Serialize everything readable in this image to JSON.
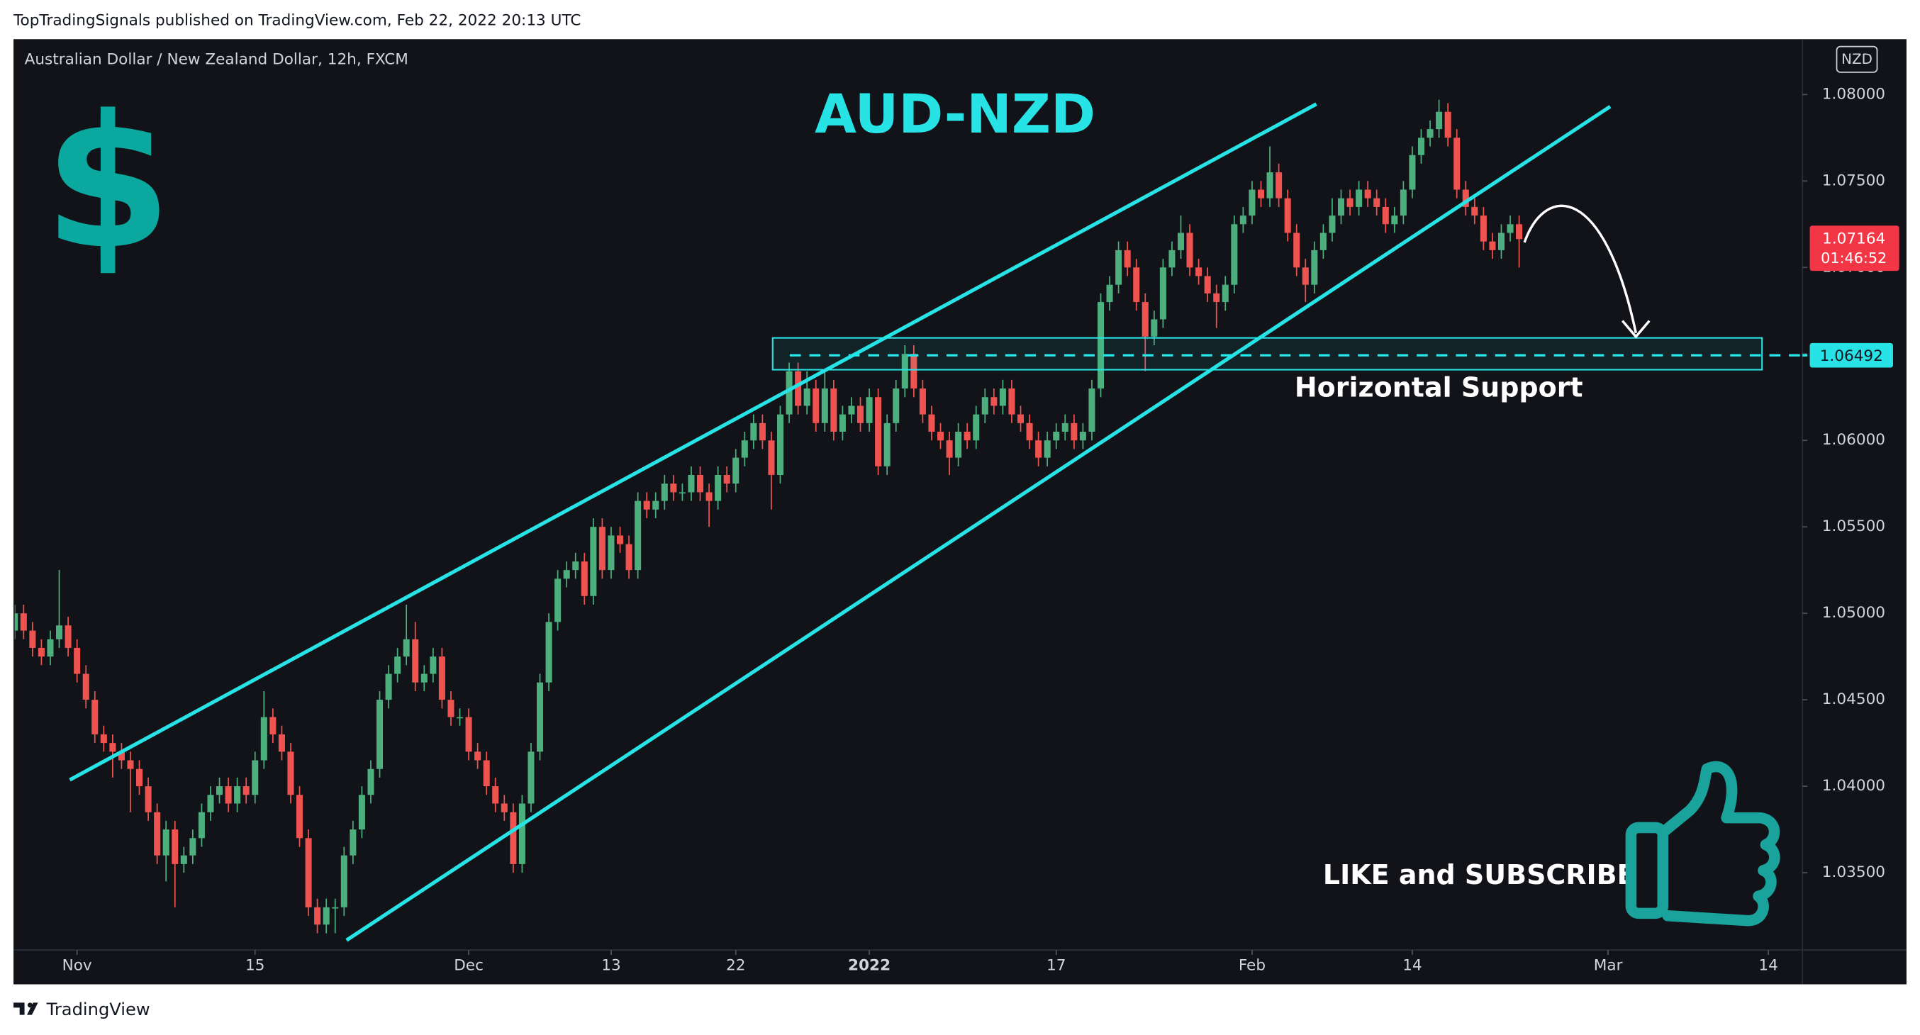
{
  "page": {
    "byline": "TopTradingSignals published on TradingView.com, Feb 22, 2022 20:13 UTC",
    "brand": "TradingView"
  },
  "chart_data": {
    "type": "candlestick",
    "title": "Australian Dollar / New Zealand Dollar, 12h, FXCM",
    "currency": "NZD",
    "annotations": {
      "pair": "AUD-NZD",
      "symbol": "$",
      "support": "Horizontal Support",
      "call_to_action": "LIKE and SUBSCRIBE"
    },
    "up_color": "#4caf7d",
    "down_color": "#ef5350",
    "channel_color": "#27e3e6",
    "current_price": {
      "value": 1.07164,
      "label": "1.07164",
      "countdown": "01:46:52",
      "color": "#f23645"
    },
    "support_level": {
      "value": 1.06492,
      "label": "1.06492",
      "color": "#27e3e6"
    },
    "xlim": [
      0,
      200
    ],
    "xticks": [
      {
        "value": 7,
        "label": "Nov"
      },
      {
        "value": 27,
        "label": "15"
      },
      {
        "value": 51,
        "label": "Dec"
      },
      {
        "value": 67,
        "label": "13"
      },
      {
        "value": 81,
        "label": "22"
      },
      {
        "value": 96,
        "label": "2022"
      },
      {
        "value": 117,
        "label": "17"
      },
      {
        "value": 139,
        "label": "Feb"
      },
      {
        "value": 157,
        "label": "14"
      },
      {
        "value": 179,
        "label": "Mar"
      },
      {
        "value": 197,
        "label": "14"
      }
    ],
    "ylim": [
      1.0306,
      1.0832
    ],
    "yticks": [
      {
        "value": 1.035,
        "label": "1.03500"
      },
      {
        "value": 1.04,
        "label": "1.04000"
      },
      {
        "value": 1.045,
        "label": "1.04500"
      },
      {
        "value": 1.05,
        "label": "1.05000"
      },
      {
        "value": 1.055,
        "label": "1.05500"
      },
      {
        "value": 1.06,
        "label": "1.06000"
      },
      {
        "value": 1.065,
        "label": "1.06500"
      },
      {
        "value": 1.07,
        "label": "1.07000"
      },
      {
        "value": 1.075,
        "label": "1.07500"
      },
      {
        "value": 1.08,
        "label": "1.08000"
      }
    ],
    "open": [
      1.049,
      1.05,
      1.049,
      1.048,
      1.0475,
      1.0485,
      1.0493,
      1.048,
      1.0465,
      1.045,
      1.043,
      1.0425,
      1.042,
      1.0415,
      1.041,
      1.04,
      1.0385,
      1.036,
      1.0375,
      1.0355,
      1.036,
      1.037,
      1.0385,
      1.0395,
      1.04,
      1.039,
      1.04,
      1.0395,
      1.0415,
      1.044,
      1.043,
      1.042,
      1.0395,
      1.037,
      1.033,
      1.032,
      1.033,
      1.033,
      1.036,
      1.0375,
      1.0395,
      1.041,
      1.045,
      1.0465,
      1.0475,
      1.0485,
      1.046,
      1.0465,
      1.0475,
      1.045,
      1.044,
      1.044,
      1.042,
      1.0415,
      1.04,
      1.039,
      1.0385,
      1.0355,
      1.039,
      1.042,
      1.046,
      1.0495,
      1.052,
      1.0525,
      1.053,
      1.051,
      1.055,
      1.0525,
      1.0545,
      1.054,
      1.0525,
      1.0565,
      1.056,
      1.0565,
      1.0575,
      1.057,
      1.057,
      1.058,
      1.057,
      1.0565,
      1.058,
      1.0575,
      1.059,
      1.06,
      1.061,
      1.06,
      1.058,
      1.0615,
      1.064,
      1.062,
      1.063,
      1.061,
      1.063,
      1.0605,
      1.0615,
      1.062,
      1.061,
      1.0625,
      1.0585,
      1.061,
      1.063,
      1.065,
      1.063,
      1.0615,
      1.0605,
      1.06,
      1.059,
      1.0605,
      1.06,
      1.0615,
      1.0625,
      1.062,
      1.063,
      1.0615,
      1.061,
      1.06,
      1.059,
      1.06,
      1.0605,
      1.061,
      1.06,
      1.0605,
      1.063,
      1.068,
      1.069,
      1.071,
      1.07,
      1.068,
      1.066,
      1.067,
      1.07,
      1.071,
      1.072,
      1.07,
      1.0695,
      1.0685,
      1.068,
      1.069,
      1.0725,
      1.073,
      1.0745,
      1.074,
      1.0755,
      1.074,
      1.072,
      1.07,
      1.069,
      1.071,
      1.072,
      1.073,
      1.074,
      1.0735,
      1.0745,
      1.074,
      1.0735,
      1.0725,
      1.073,
      1.0745,
      1.0765,
      1.0775,
      1.078,
      1.079,
      1.0775,
      1.0745,
      1.0735,
      1.073,
      1.0715,
      1.071,
      1.072,
      1.0725
    ],
    "high": [
      1.0505,
      1.0505,
      1.0495,
      1.0485,
      1.049,
      1.0525,
      1.0498,
      1.0485,
      1.047,
      1.0455,
      1.0435,
      1.043,
      1.0425,
      1.042,
      1.0415,
      1.0405,
      1.039,
      1.038,
      1.038,
      1.0365,
      1.0375,
      1.039,
      1.04,
      1.0405,
      1.0405,
      1.0405,
      1.0405,
      1.042,
      1.0455,
      1.0445,
      1.0435,
      1.0425,
      1.04,
      1.0375,
      1.0335,
      1.0335,
      1.0335,
      1.0365,
      1.038,
      1.04,
      1.0415,
      1.0455,
      1.047,
      1.048,
      1.0505,
      1.0495,
      1.047,
      1.048,
      1.048,
      1.0455,
      1.0445,
      1.0445,
      1.0425,
      1.042,
      1.0405,
      1.0395,
      1.039,
      1.0395,
      1.0425,
      1.0465,
      1.05,
      1.0525,
      1.053,
      1.0535,
      1.0535,
      1.0555,
      1.0555,
      1.055,
      1.055,
      1.0545,
      1.057,
      1.057,
      1.057,
      1.058,
      1.058,
      1.0575,
      1.0585,
      1.0585,
      1.0575,
      1.0585,
      1.0585,
      1.0595,
      1.0605,
      1.0615,
      1.0615,
      1.0605,
      1.062,
      1.0645,
      1.0645,
      1.064,
      1.0635,
      1.064,
      1.0635,
      1.062,
      1.0625,
      1.0625,
      1.063,
      1.063,
      1.0615,
      1.0635,
      1.0655,
      1.0655,
      1.0635,
      1.062,
      1.061,
      1.0605,
      1.061,
      1.061,
      1.062,
      1.063,
      1.063,
      1.0635,
      1.0635,
      1.062,
      1.0615,
      1.0605,
      1.0605,
      1.061,
      1.0615,
      1.0615,
      1.061,
      1.0635,
      1.0685,
      1.0695,
      1.0715,
      1.0715,
      1.0705,
      1.0685,
      1.0675,
      1.0705,
      1.0715,
      1.073,
      1.0725,
      1.0705,
      1.07,
      1.069,
      1.0695,
      1.073,
      1.0735,
      1.075,
      1.075,
      1.077,
      1.076,
      1.0745,
      1.0725,
      1.0705,
      1.0715,
      1.0725,
      1.074,
      1.0745,
      1.0745,
      1.075,
      1.075,
      1.0745,
      1.074,
      1.0735,
      1.075,
      1.077,
      1.078,
      1.0785,
      1.0797,
      1.0795,
      1.078,
      1.075,
      1.074,
      1.0735,
      1.072,
      1.0725,
      1.073,
      1.073
    ],
    "low": [
      1.0485,
      1.0485,
      1.0475,
      1.047,
      1.047,
      1.048,
      1.0475,
      1.046,
      1.0445,
      1.0425,
      1.042,
      1.0405,
      1.041,
      1.0385,
      1.0395,
      1.038,
      1.0355,
      1.0345,
      1.033,
      1.035,
      1.0355,
      1.0365,
      1.038,
      1.039,
      1.0385,
      1.0385,
      1.039,
      1.039,
      1.041,
      1.0425,
      1.0415,
      1.039,
      1.0365,
      1.0325,
      1.0315,
      1.0315,
      1.0315,
      1.0325,
      1.0355,
      1.037,
      1.039,
      1.0405,
      1.0445,
      1.046,
      1.047,
      1.0455,
      1.0455,
      1.046,
      1.0445,
      1.0435,
      1.0435,
      1.0415,
      1.041,
      1.0395,
      1.0385,
      1.038,
      1.035,
      1.035,
      1.0385,
      1.0415,
      1.0455,
      1.049,
      1.0515,
      1.052,
      1.0505,
      1.0505,
      1.052,
      1.052,
      1.0535,
      1.052,
      1.052,
      1.0555,
      1.0555,
      1.056,
      1.0565,
      1.0565,
      1.0565,
      1.0565,
      1.055,
      1.056,
      1.057,
      1.057,
      1.0585,
      1.0595,
      1.0595,
      1.056,
      1.0575,
      1.061,
      1.0615,
      1.0615,
      1.0605,
      1.0605,
      1.06,
      1.06,
      1.061,
      1.0605,
      1.0605,
      1.058,
      1.058,
      1.0605,
      1.0625,
      1.0625,
      1.061,
      1.06,
      1.0595,
      1.058,
      1.0585,
      1.0595,
      1.0595,
      1.061,
      1.0615,
      1.0615,
      1.061,
      1.0605,
      1.0595,
      1.0585,
      1.0585,
      1.0595,
      1.06,
      1.0595,
      1.0595,
      1.06,
      1.0625,
      1.0675,
      1.0685,
      1.0695,
      1.0675,
      1.064,
      1.0655,
      1.0665,
      1.0695,
      1.0705,
      1.0695,
      1.069,
      1.068,
      1.0665,
      1.0675,
      1.0685,
      1.072,
      1.0725,
      1.0735,
      1.0735,
      1.0735,
      1.0715,
      1.0695,
      1.068,
      1.0685,
      1.0705,
      1.0715,
      1.0725,
      1.073,
      1.073,
      1.0735,
      1.073,
      1.072,
      1.072,
      1.0725,
      1.074,
      1.076,
      1.077,
      1.0775,
      1.077,
      1.074,
      1.073,
      1.0725,
      1.071,
      1.0705,
      1.0705,
      1.0715,
      1.07
    ],
    "close": [
      1.05,
      1.049,
      1.048,
      1.0475,
      1.0485,
      1.0493,
      1.048,
      1.0465,
      1.045,
      1.043,
      1.0425,
      1.042,
      1.0415,
      1.041,
      1.04,
      1.0385,
      1.036,
      1.0375,
      1.0355,
      1.036,
      1.037,
      1.0385,
      1.0395,
      1.04,
      1.039,
      1.04,
      1.0395,
      1.0415,
      1.044,
      1.043,
      1.042,
      1.0395,
      1.037,
      1.033,
      1.032,
      1.033,
      1.033,
      1.036,
      1.0375,
      1.0395,
      1.041,
      1.045,
      1.0465,
      1.0475,
      1.0485,
      1.046,
      1.0465,
      1.0475,
      1.045,
      1.044,
      1.044,
      1.042,
      1.0415,
      1.04,
      1.039,
      1.0385,
      1.0355,
      1.039,
      1.042,
      1.046,
      1.0495,
      1.052,
      1.0525,
      1.053,
      1.051,
      1.055,
      1.0525,
      1.0545,
      1.054,
      1.0525,
      1.0565,
      1.056,
      1.0565,
      1.0575,
      1.057,
      1.057,
      1.058,
      1.057,
      1.0565,
      1.058,
      1.0575,
      1.059,
      1.06,
      1.061,
      1.06,
      1.058,
      1.0615,
      1.064,
      1.062,
      1.063,
      1.061,
      1.063,
      1.0605,
      1.0615,
      1.062,
      1.061,
      1.0625,
      1.0585,
      1.061,
      1.063,
      1.065,
      1.063,
      1.0615,
      1.0605,
      1.06,
      1.059,
      1.0605,
      1.06,
      1.0615,
      1.0625,
      1.062,
      1.063,
      1.0615,
      1.061,
      1.06,
      1.059,
      1.06,
      1.0605,
      1.061,
      1.06,
      1.0605,
      1.063,
      1.068,
      1.069,
      1.071,
      1.07,
      1.068,
      1.066,
      1.067,
      1.07,
      1.071,
      1.072,
      1.07,
      1.0695,
      1.0685,
      1.068,
      1.069,
      1.0725,
      1.073,
      1.0745,
      1.074,
      1.0755,
      1.074,
      1.072,
      1.07,
      1.069,
      1.071,
      1.072,
      1.073,
      1.074,
      1.0735,
      1.0745,
      1.074,
      1.0735,
      1.0725,
      1.073,
      1.0745,
      1.0765,
      1.0775,
      1.078,
      1.079,
      1.0775,
      1.0745,
      1.0735,
      1.073,
      1.0715,
      1.071,
      1.072,
      1.0725,
      1.07164
    ]
  }
}
